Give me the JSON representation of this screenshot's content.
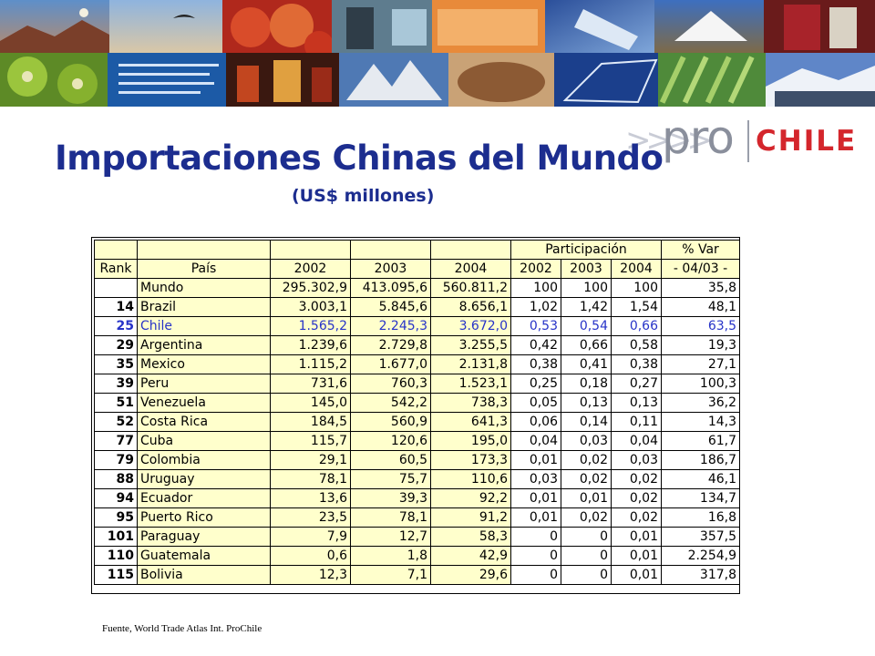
{
  "title": "Importaciones Chinas del Mundo",
  "subtitle": "(US$ millones)",
  "logo": {
    "arrows": ">>>>",
    "pro": "pro",
    "chile": "CHILE"
  },
  "colors": {
    "title": "#1c2d8f",
    "header_fill": "#ffffcc",
    "highlight_text": "#2733c8",
    "logo_red": "#d4262c"
  },
  "table": {
    "group_headers": {
      "participacion": "Participación",
      "var": "% Var"
    },
    "headers": {
      "rank": "Rank",
      "pais": "País",
      "y2002": "2002",
      "y2003": "2003",
      "y2004": "2004",
      "p2002": "2002",
      "p2003": "2003",
      "p2004": "2004",
      "var": "- 04/03 -"
    },
    "rows": [
      {
        "rank": "",
        "pais": "Mundo",
        "y2002": "295.302,9",
        "y2003": "413.095,6",
        "y2004": "560.811,2",
        "p2002": "100",
        "p2003": "100",
        "p2004": "100",
        "var": "35,8"
      },
      {
        "rank": "14",
        "pais": "Brazil",
        "y2002": "3.003,1",
        "y2003": "5.845,6",
        "y2004": "8.656,1",
        "p2002": "1,02",
        "p2003": "1,42",
        "p2004": "1,54",
        "var": "48,1"
      },
      {
        "rank": "25",
        "pais": "Chile",
        "y2002": "1.565,2",
        "y2003": "2.245,3",
        "y2004": "3.672,0",
        "p2002": "0,53",
        "p2003": "0,54",
        "p2004": "0,66",
        "var": "63,5"
      },
      {
        "rank": "29",
        "pais": "Argentina",
        "y2002": "1.239,6",
        "y2003": "2.729,8",
        "y2004": "3.255,5",
        "p2002": "0,42",
        "p2003": "0,66",
        "p2004": "0,58",
        "var": "19,3"
      },
      {
        "rank": "35",
        "pais": "Mexico",
        "y2002": "1.115,2",
        "y2003": "1.677,0",
        "y2004": "2.131,8",
        "p2002": "0,38",
        "p2003": "0,41",
        "p2004": "0,38",
        "var": "27,1"
      },
      {
        "rank": "39",
        "pais": "Peru",
        "y2002": "731,6",
        "y2003": "760,3",
        "y2004": "1.523,1",
        "p2002": "0,25",
        "p2003": "0,18",
        "p2004": "0,27",
        "var": "100,3"
      },
      {
        "rank": "51",
        "pais": "Venezuela",
        "y2002": "145,0",
        "y2003": "542,2",
        "y2004": "738,3",
        "p2002": "0,05",
        "p2003": "0,13",
        "p2004": "0,13",
        "var": "36,2"
      },
      {
        "rank": "52",
        "pais": "Costa Rica",
        "y2002": "184,5",
        "y2003": "560,9",
        "y2004": "641,3",
        "p2002": "0,06",
        "p2003": "0,14",
        "p2004": "0,11",
        "var": "14,3"
      },
      {
        "rank": "77",
        "pais": "Cuba",
        "y2002": "115,7",
        "y2003": "120,6",
        "y2004": "195,0",
        "p2002": "0,04",
        "p2003": "0,03",
        "p2004": "0,04",
        "var": "61,7"
      },
      {
        "rank": "79",
        "pais": "Colombia",
        "y2002": "29,1",
        "y2003": "60,5",
        "y2004": "173,3",
        "p2002": "0,01",
        "p2003": "0,02",
        "p2004": "0,03",
        "var": "186,7"
      },
      {
        "rank": "88",
        "pais": "Uruguay",
        "y2002": "78,1",
        "y2003": "75,7",
        "y2004": "110,6",
        "p2002": "0,03",
        "p2003": "0,02",
        "p2004": "0,02",
        "var": "46,1"
      },
      {
        "rank": "94",
        "pais": "Ecuador",
        "y2002": "13,6",
        "y2003": "39,3",
        "y2004": "92,2",
        "p2002": "0,01",
        "p2003": "0,01",
        "p2004": "0,02",
        "var": "134,7"
      },
      {
        "rank": "95",
        "pais": "Puerto Rico",
        "y2002": "23,5",
        "y2003": "78,1",
        "y2004": "91,2",
        "p2002": "0,01",
        "p2003": "0,02",
        "p2004": "0,02",
        "var": "16,8"
      },
      {
        "rank": "101",
        "pais": "Paraguay",
        "y2002": "7,9",
        "y2003": "12,7",
        "y2004": "58,3",
        "p2002": "0",
        "p2003": "0",
        "p2004": "0,01",
        "var": "357,5"
      },
      {
        "rank": "110",
        "pais": "Guatemala",
        "y2002": "0,6",
        "y2003": "1,8",
        "y2004": "42,9",
        "p2002": "0",
        "p2003": "0",
        "p2004": "0,01",
        "var": "2.254,9"
      },
      {
        "rank": "115",
        "pais": "Bolivia",
        "y2002": "12,3",
        "y2003": "7,1",
        "y2004": "29,6",
        "p2002": "0",
        "p2003": "0",
        "p2004": "0,01",
        "var": "317,8"
      }
    ]
  },
  "source": "Fuente, World Trade Atlas Int. ProChile"
}
